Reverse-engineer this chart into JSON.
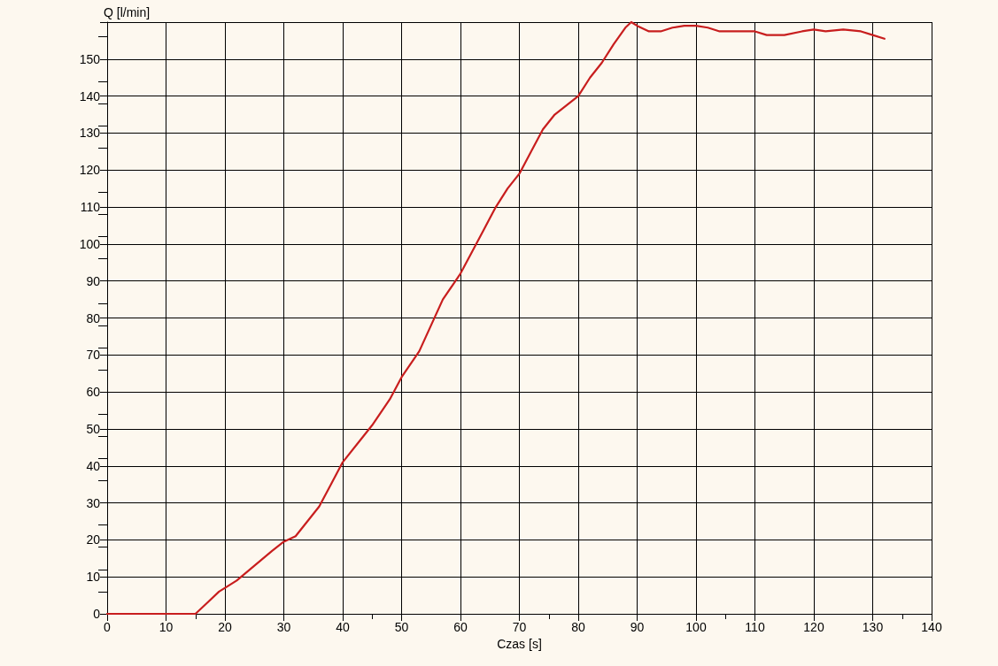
{
  "chart_data": {
    "type": "line",
    "xlabel": "Czas [s]",
    "ylabel": "Q [l/min]",
    "xlim": [
      0,
      140
    ],
    "ylim": [
      0,
      160
    ],
    "xticks": [
      0,
      10,
      20,
      30,
      40,
      50,
      60,
      70,
      80,
      90,
      100,
      110,
      120,
      130,
      140
    ],
    "yticks": [
      0,
      10,
      20,
      30,
      40,
      50,
      60,
      70,
      80,
      90,
      100,
      110,
      120,
      130,
      140,
      150,
      {
        "value": 160,
        "label": null
      }
    ],
    "grid": true,
    "marker": "none",
    "line_style": "solid",
    "series": [
      {
        "color": "#c81e1e",
        "x": [
          0,
          15,
          17,
          19,
          22,
          25,
          28,
          30,
          32,
          34,
          36,
          38,
          40,
          43,
          45,
          48,
          50,
          53,
          55,
          57,
          60,
          62,
          64,
          66,
          68,
          70,
          72,
          74,
          76,
          78,
          80,
          82,
          84,
          86,
          88,
          89,
          90,
          92,
          94,
          96,
          98,
          100,
          102,
          104,
          110,
          112,
          115,
          118,
          120,
          122,
          125,
          128,
          130,
          132
        ],
        "values": [
          0,
          0,
          3,
          6,
          9,
          13,
          17,
          19.5,
          21,
          25,
          29,
          35,
          41,
          47,
          51,
          58,
          64,
          71,
          78,
          85,
          92,
          98,
          104,
          110,
          115,
          119,
          125,
          131,
          135,
          137.5,
          140,
          145,
          149,
          154,
          158.5,
          160,
          159,
          157.5,
          157.5,
          158.5,
          159,
          159,
          158.5,
          157.5,
          157.5,
          156.5,
          156.5,
          157.5,
          158,
          157.5,
          158,
          157.5,
          156.5,
          155.5
        ]
      }
    ]
  }
}
